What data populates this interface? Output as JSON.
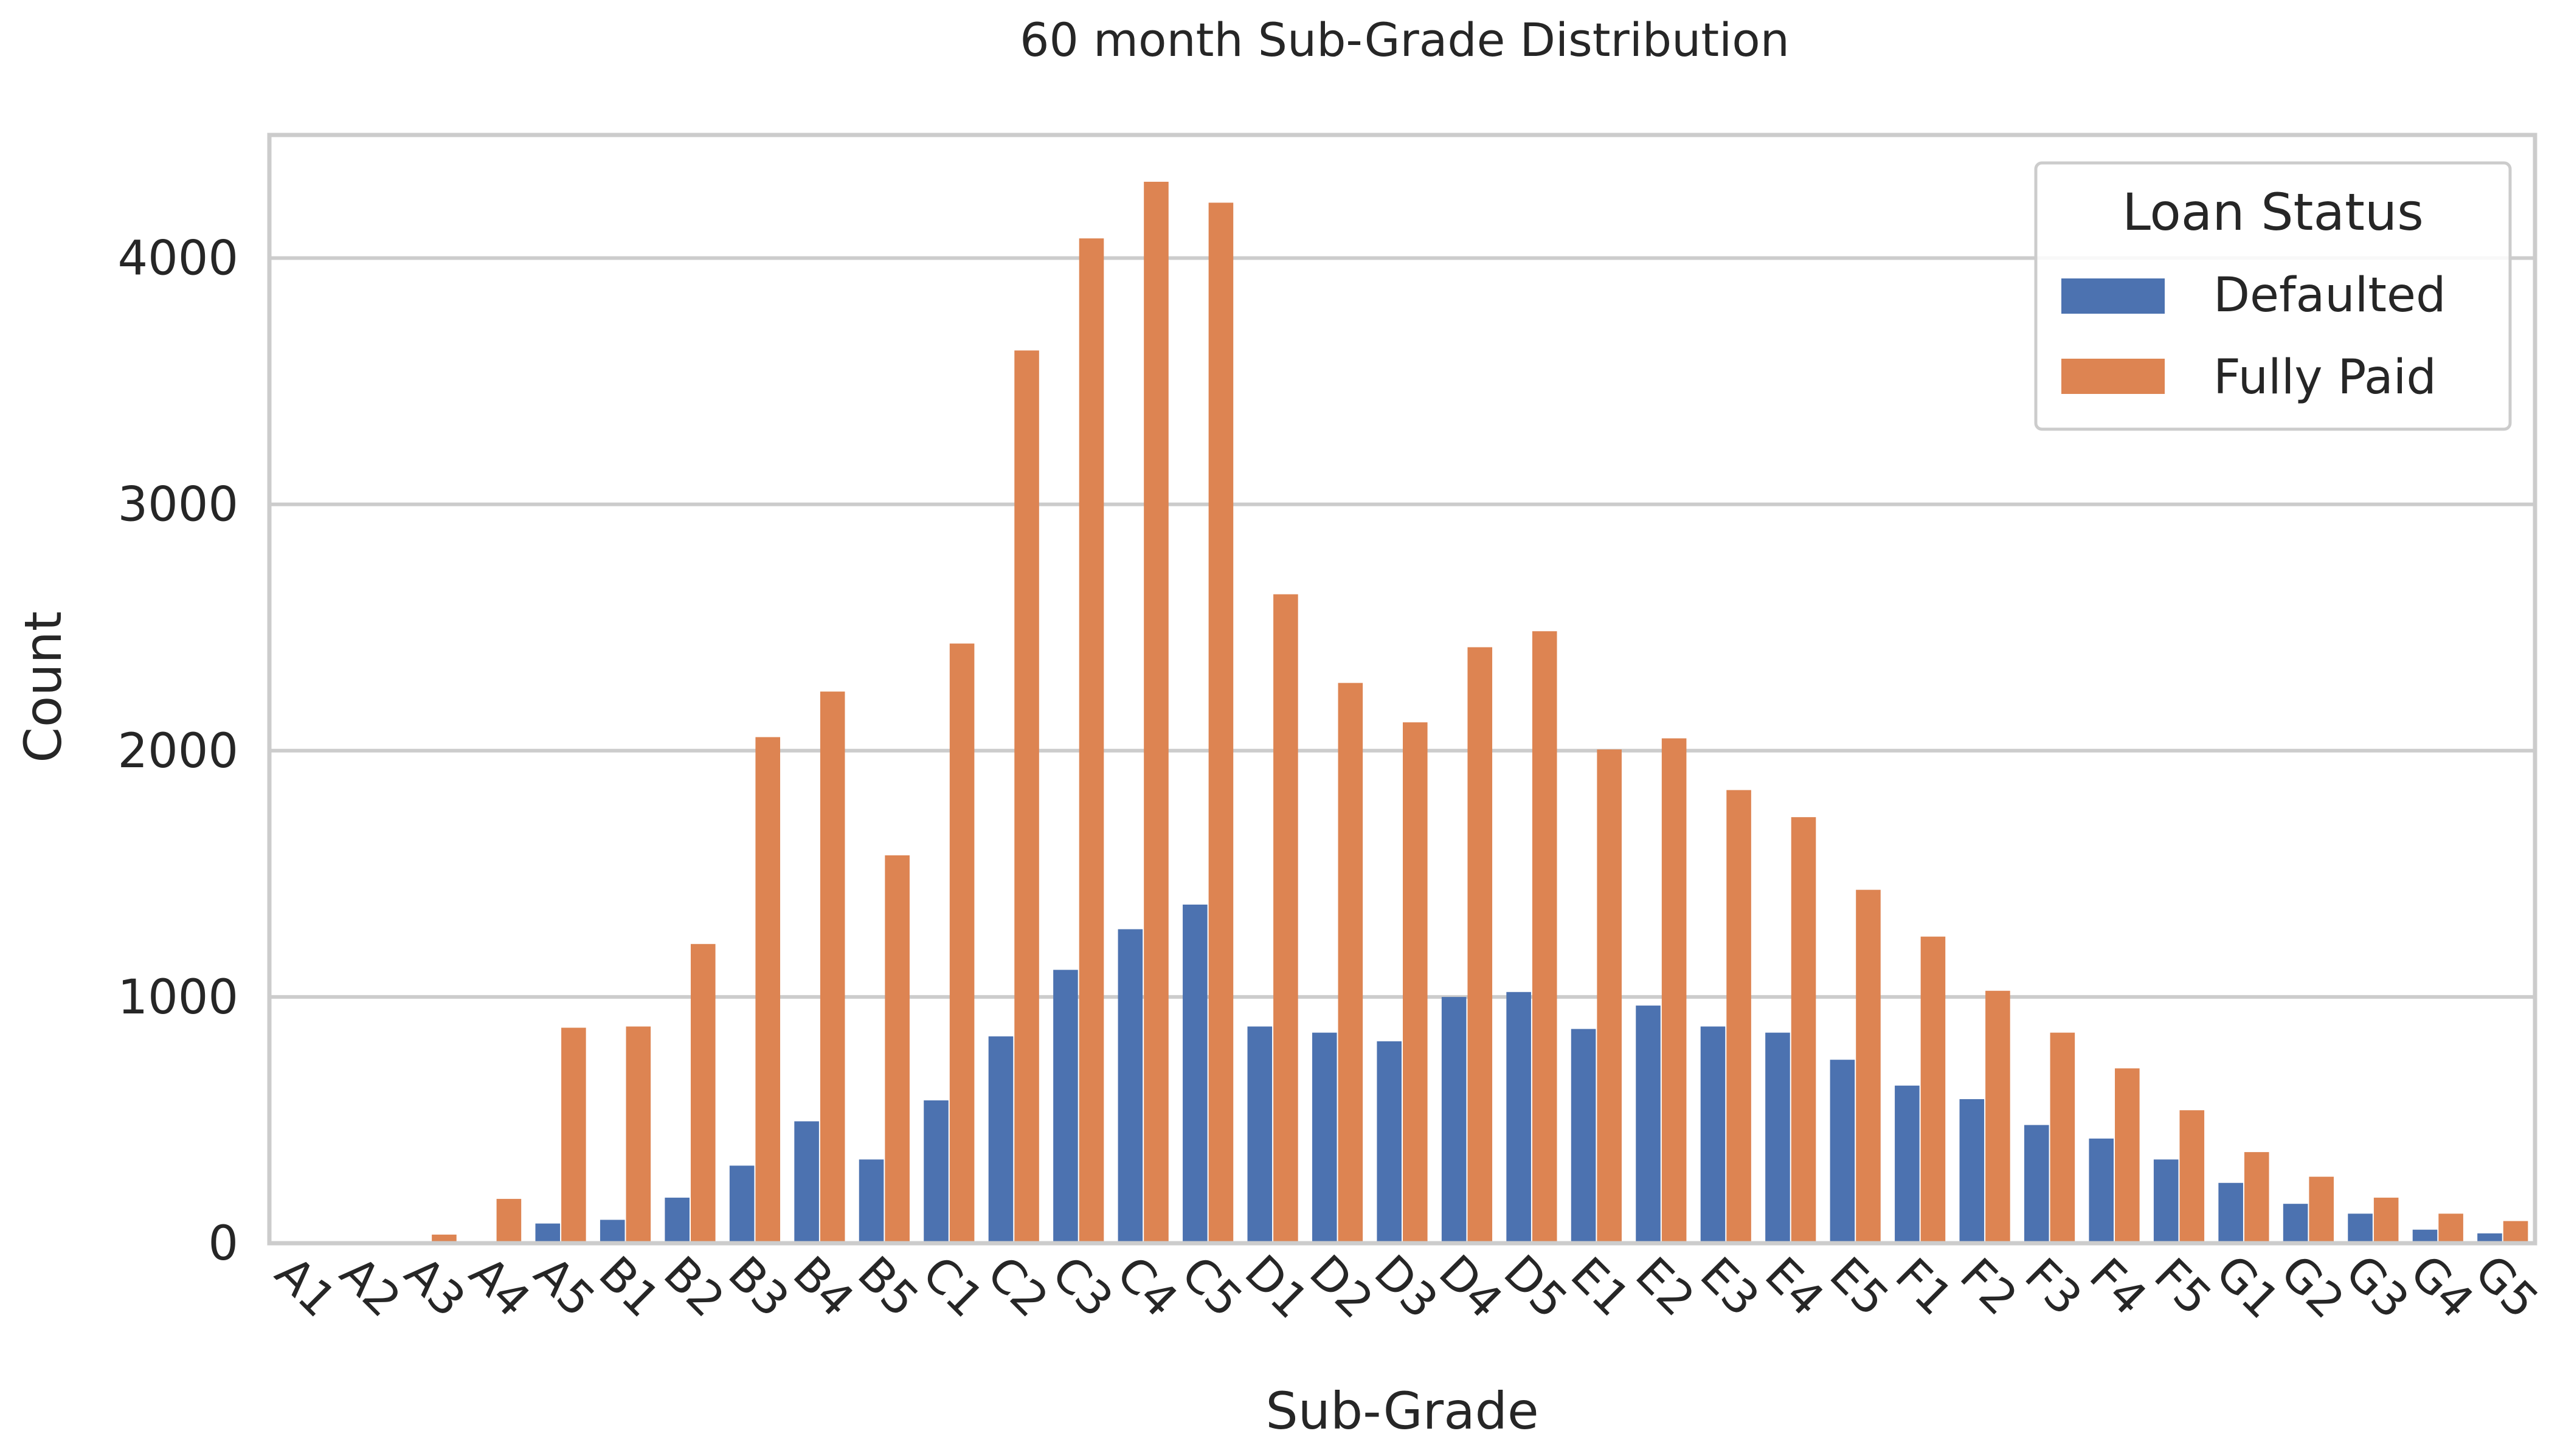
{
  "chart_data": {
    "type": "bar",
    "title": "60 month Sub-Grade Distribution",
    "xlabel": "Sub-Grade",
    "ylabel": "Count",
    "ylim": [
      0,
      4500
    ],
    "yticks": [
      0,
      1000,
      2000,
      3000,
      4000
    ],
    "grid": true,
    "legend_position": "top-right",
    "legend_title": "Loan Status",
    "categories": [
      "A1",
      "A2",
      "A3",
      "A4",
      "A5",
      "B1",
      "B2",
      "B3",
      "B4",
      "B5",
      "C1",
      "C2",
      "C3",
      "C4",
      "C5",
      "D1",
      "D2",
      "D3",
      "D4",
      "D5",
      "E1",
      "E2",
      "E3",
      "E4",
      "E5",
      "F1",
      "F2",
      "F3",
      "F4",
      "F5",
      "G1",
      "G2",
      "G3",
      "G4",
      "G5"
    ],
    "series": [
      {
        "name": "Defaulted",
        "color": "#4c72b0",
        "values": [
          0,
          0,
          2,
          5,
          80,
          95,
          185,
          315,
          495,
          340,
          580,
          840,
          1110,
          1275,
          1375,
          880,
          855,
          820,
          1000,
          1020,
          870,
          965,
          880,
          855,
          745,
          640,
          585,
          480,
          425,
          340,
          245,
          160,
          120,
          55,
          40
        ]
      },
      {
        "name": "Fully Paid",
        "color": "#dd8452",
        "values": [
          0,
          2,
          35,
          180,
          875,
          880,
          1215,
          2055,
          2240,
          1575,
          2435,
          3625,
          4080,
          4310,
          4225,
          2635,
          2275,
          2115,
          2420,
          2485,
          2005,
          2050,
          1840,
          1730,
          1435,
          1245,
          1025,
          855,
          710,
          540,
          370,
          270,
          185,
          120,
          90
        ]
      }
    ]
  }
}
